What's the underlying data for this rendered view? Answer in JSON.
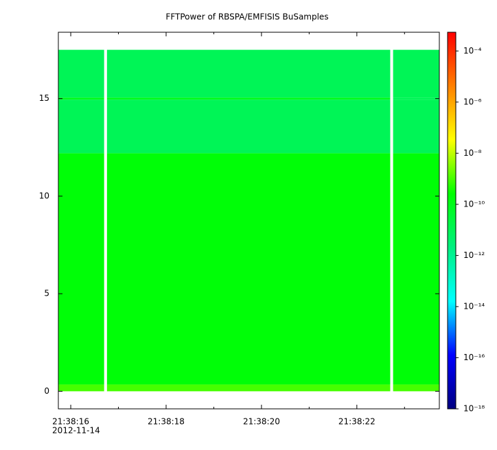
{
  "chart_data": {
    "type": "spectrogram",
    "title": "FFTPower of RBSPA/EMFISIS  BuSamples",
    "date": "2012-11-14",
    "xlim": [
      15.74,
      23.73
    ],
    "xticks": [
      {
        "value": 16,
        "label": "21:38:16"
      },
      {
        "value": 18,
        "label": "21:38:18"
      },
      {
        "value": 20,
        "label": "21:38:20"
      },
      {
        "value": 22,
        "label": "21:38:22"
      }
    ],
    "xminorticks": [
      17,
      19,
      21,
      23
    ],
    "ylim": [
      -0.9,
      18.4
    ],
    "yticks": [
      0,
      5,
      10,
      15
    ],
    "x_edges": [
      15.74,
      16.7,
      16.76,
      22.7,
      22.76,
      23.73
    ],
    "y_edges": [
      0,
      0.35,
      12.2,
      14.95,
      15.05,
      17.5
    ],
    "z": [
      [
        1e-09,
        null,
        1e-09,
        null,
        1e-09
      ],
      [
        2e-10,
        null,
        2e-10,
        null,
        2e-10
      ],
      [
        1e-11,
        null,
        1e-11,
        null,
        1e-11
      ],
      [
        1e-10,
        null,
        1e-10,
        null,
        1e-11
      ],
      [
        1e-11,
        null,
        1e-11,
        null,
        1e-11
      ]
    ],
    "log_color_scale": true,
    "zlim": [
      1e-18,
      0.00054
    ],
    "zticks": [
      {
        "value": 1e-18,
        "label": "10⁻¹⁸"
      },
      {
        "value": 1e-16,
        "label": "10⁻¹⁶"
      },
      {
        "value": 1e-14,
        "label": "10⁻¹⁴"
      },
      {
        "value": 1e-12,
        "label": "10⁻¹²"
      },
      {
        "value": 1e-10,
        "label": "10⁻¹⁰"
      },
      {
        "value": 1e-08,
        "label": "10⁻⁸"
      },
      {
        "value": 1e-06,
        "label": "10⁻⁶"
      },
      {
        "value": 0.0001,
        "label": "10⁻⁴"
      }
    ],
    "colormap": [
      "#000080",
      "#0000ff",
      "#00ffff",
      "#00f080",
      "#00ff00",
      "#ffff00",
      "#ff8000",
      "#ff0000"
    ]
  }
}
